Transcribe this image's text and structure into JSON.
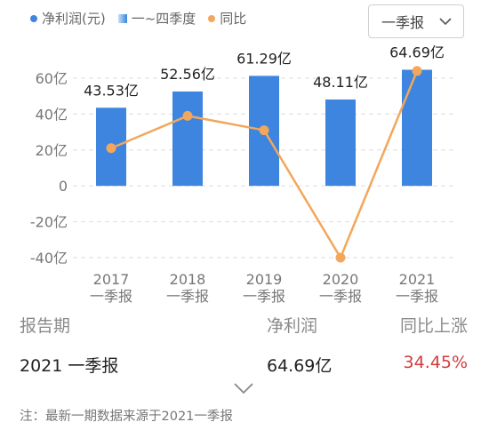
{
  "legend": {
    "net_profit": "净利润(元)",
    "quarterly": "一~四季度",
    "yoy": "同比"
  },
  "dropdown": {
    "selected": "一季报"
  },
  "colors": {
    "bar": "#3d85de",
    "line": "#f2a75c",
    "grid": "#dddddd",
    "positive": "#222222",
    "negative": "#d23c3c"
  },
  "chart_data": {
    "type": "bar",
    "categories": [
      "2017\n一季报",
      "2018\n一季报",
      "2019\n一季报",
      "2020\n一季报",
      "2021\n一季报"
    ],
    "series": [
      {
        "name": "净利润(元)",
        "type": "bar",
        "values": [
          43.53,
          52.56,
          61.29,
          48.11,
          64.69
        ],
        "labels": [
          "43.53亿",
          "52.56亿",
          "61.29亿",
          "48.11亿",
          "64.69亿"
        ]
      },
      {
        "name": "同比",
        "type": "line",
        "values": [
          21,
          39,
          31,
          -40,
          64
        ]
      }
    ],
    "yticks": [
      "60亿",
      "40亿",
      "20亿",
      "0",
      "-20亿",
      "-40亿"
    ],
    "ytick_values": [
      60,
      40,
      20,
      0,
      -20,
      -40
    ],
    "ylim": [
      -40,
      60
    ],
    "grid": true,
    "legend_position": "top-left"
  },
  "table": {
    "headers": [
      "报告期",
      "净利润",
      "同比上涨"
    ],
    "row": {
      "period": "2021 一季报",
      "profit": "64.69亿",
      "change": "34.45%"
    }
  },
  "note": "注：最新一期数据来源于2021一季报"
}
